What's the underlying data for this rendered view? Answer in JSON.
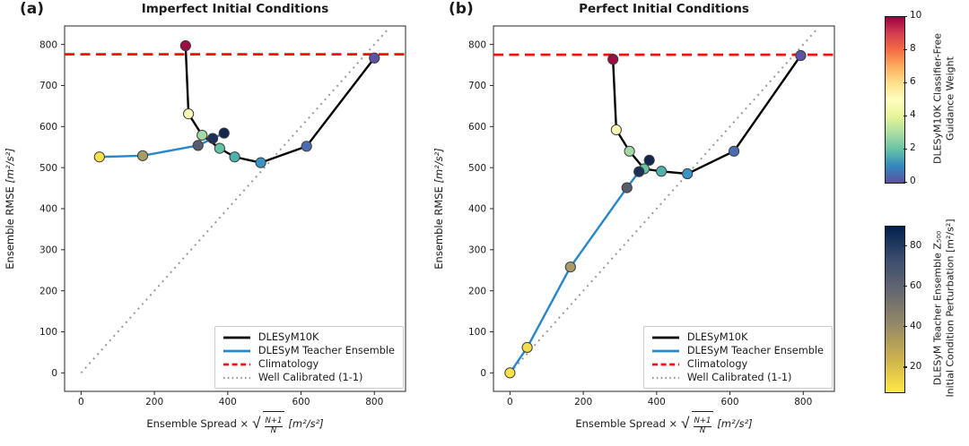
{
  "axis_labels": {
    "x_prefix": "Ensemble Spread ×",
    "x_frac_num": "N+1",
    "x_frac_den": "N",
    "x_units": "[m²/s²]",
    "y_text": "Ensemble RMSE",
    "y_units": "[m²/s²]"
  },
  "legend": {
    "items": [
      {
        "label": "DLESyM10K",
        "color": "#000000",
        "style": "solid"
      },
      {
        "label": "DLESyM Teacher Ensemble",
        "color": "#2787c8",
        "style": "solid"
      },
      {
        "label": "Climatology",
        "color": "#fb0d0c",
        "style": "dashed"
      },
      {
        "label": "Well Calibrated (1-1)",
        "color": "#999999",
        "style": "dotted"
      }
    ]
  },
  "colorbars": [
    {
      "label_line1": "DLESyM10K Classifier-Free",
      "label_line2": "Guidance Weight",
      "vmin": 0,
      "vmax": 10,
      "ticks": [
        0,
        2,
        4,
        6,
        8,
        10
      ],
      "gradient_bottom_to_top": [
        "#5e4fa2",
        "#3288bd",
        "#66c2a5",
        "#abdda4",
        "#e6f598",
        "#ffffbf",
        "#fee08b",
        "#fdae61",
        "#f46d43",
        "#d53e4f",
        "#9e0142"
      ]
    },
    {
      "label_line1": "DLESyM Teacher Ensemble Z₅₀₀",
      "label_line2": "Initial Condition Perturbation [m²/s²]",
      "vmin": 8,
      "vmax": 90,
      "ticks": [
        20,
        40,
        60,
        80
      ],
      "gradient_bottom_to_top": [
        "#ffe945",
        "#cdb24c",
        "#978a67",
        "#676970",
        "#3c4d6e",
        "#00204c"
      ]
    }
  ],
  "chart_data": [
    {
      "type": "line",
      "panel_label": "(a)",
      "title": "Imperfect Initial Conditions",
      "xlabel": "Ensemble Spread × √((N+1)/N) [m²/s²]",
      "ylabel": "Ensemble RMSE [m²/s²]",
      "xlim": [
        -45,
        885
      ],
      "ylim": [
        -45,
        845
      ],
      "xticks": [
        0,
        200,
        400,
        600,
        800
      ],
      "yticks": [
        0,
        100,
        200,
        300,
        400,
        500,
        600,
        700,
        800
      ],
      "grid": false,
      "legend_position": "lower right",
      "series": [
        {
          "name": "DLESyM10K",
          "line_color": "#000000",
          "line_style": "solid",
          "points": [
            {
              "x": 285,
              "y": 797,
              "color": "#9e0c43"
            },
            {
              "x": 293,
              "y": 631,
              "color": "#f6fab5"
            },
            {
              "x": 330,
              "y": 579,
              "color": "#a3d9a4"
            },
            {
              "x": 378,
              "y": 547,
              "color": "#66c2a5"
            },
            {
              "x": 419,
              "y": 526,
              "color": "#4fb2ae"
            },
            {
              "x": 490,
              "y": 512,
              "color": "#3a92c5"
            },
            {
              "x": 615,
              "y": 552,
              "color": "#4a6db1"
            },
            {
              "x": 800,
              "y": 767,
              "color": "#5e51a6"
            }
          ]
        },
        {
          "name": "DLESyM Teacher Ensemble",
          "line_color": "#2787c8",
          "line_style": "solid",
          "points": [
            {
              "x": 50,
              "y": 526,
              "color": "#f7e14c"
            },
            {
              "x": 168,
              "y": 529,
              "color": "#a69a66"
            },
            {
              "x": 319,
              "y": 554,
              "color": "#575d6d"
            },
            {
              "x": 359,
              "y": 571,
              "color": "#1d3158"
            },
            {
              "x": 390,
              "y": 584,
              "color": "#13264e"
            }
          ]
        },
        {
          "name": "Climatology",
          "line_color": "#fb0d0c",
          "line_style": "dashed",
          "hline_y": 776
        },
        {
          "name": "Well Calibrated (1-1)",
          "line_color": "#999999",
          "line_style": "dotted",
          "from": [
            0,
            0
          ],
          "to": [
            836,
            836
          ]
        }
      ]
    },
    {
      "type": "line",
      "panel_label": "(b)",
      "title": "Perfect Initial Conditions",
      "xlabel": "Ensemble Spread × √((N+1)/N) [m²/s²]",
      "ylabel": "Ensemble RMSE [m²/s²]",
      "xlim": [
        -45,
        885
      ],
      "ylim": [
        -45,
        845
      ],
      "xticks": [
        0,
        200,
        400,
        600,
        800
      ],
      "yticks": [
        0,
        100,
        200,
        300,
        400,
        500,
        600,
        700,
        800
      ],
      "grid": false,
      "legend_position": "lower right",
      "series": [
        {
          "name": "DLESyM10K",
          "line_color": "#000000",
          "line_style": "solid",
          "points": [
            {
              "x": 281,
              "y": 764,
              "color": "#9e0c43"
            },
            {
              "x": 290,
              "y": 592,
              "color": "#f6fab5"
            },
            {
              "x": 326,
              "y": 540,
              "color": "#a3d9a4"
            },
            {
              "x": 366,
              "y": 497,
              "color": "#66c2a5"
            },
            {
              "x": 413,
              "y": 491,
              "color": "#4fb2ae"
            },
            {
              "x": 484,
              "y": 485,
              "color": "#3a92c5"
            },
            {
              "x": 611,
              "y": 540,
              "color": "#4a6db1"
            },
            {
              "x": 793,
              "y": 773,
              "color": "#5e51a6"
            }
          ]
        },
        {
          "name": "DLESyM Teacher Ensemble",
          "line_color": "#2787c8",
          "line_style": "solid",
          "points": [
            {
              "x": 0,
              "y": 0,
              "color": "#f7e14c"
            },
            {
              "x": 47,
              "y": 62,
              "color": "#f2dc4e"
            },
            {
              "x": 165,
              "y": 258,
              "color": "#a69a66"
            },
            {
              "x": 319,
              "y": 451,
              "color": "#575d6d"
            },
            {
              "x": 352,
              "y": 490,
              "color": "#1d3158"
            },
            {
              "x": 380,
              "y": 518,
              "color": "#13264e"
            }
          ]
        },
        {
          "name": "Climatology",
          "line_color": "#fb0d0c",
          "line_style": "dashed",
          "hline_y": 775
        },
        {
          "name": "Well Calibrated (1-1)",
          "line_color": "#999999",
          "line_style": "dotted",
          "from": [
            0,
            0
          ],
          "to": [
            836,
            836
          ]
        }
      ]
    }
  ]
}
